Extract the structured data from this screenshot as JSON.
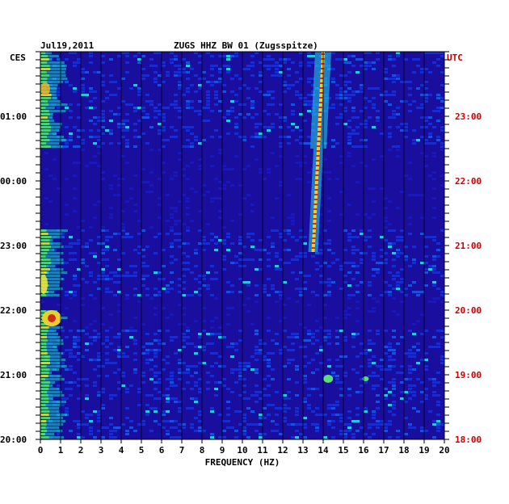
{
  "header": {
    "date": "Jul19,2011",
    "station": "ZUGS HHZ BW 01 (Zugsspitze)",
    "left_zone": "CES",
    "right_zone": "UTC"
  },
  "chart_data": {
    "type": "heatmap",
    "title": "ZUGS HHZ BW 01 (Zugsspitze)",
    "date": "Jul19,2011",
    "xlabel": "FREQUENCY (HZ)",
    "xlim": [
      0,
      20
    ],
    "x_ticks": [
      "0",
      "1",
      "2",
      "3",
      "4",
      "5",
      "6",
      "7",
      "8",
      "9",
      "10",
      "11",
      "12",
      "13",
      "14",
      "15",
      "16",
      "17",
      "18",
      "19",
      "20"
    ],
    "y_left_label": "CES",
    "y_right_label": "UTC",
    "y_left_ticks": [
      "01:00",
      "00:00",
      "23:00",
      "22:00",
      "21:00",
      "20:00"
    ],
    "y_right_ticks": [
      "23:00",
      "22:00",
      "21:00",
      "20:00",
      "19:00",
      "18:00"
    ],
    "colors": {
      "background": "#1a0e9e",
      "band": "#0a0aa0",
      "grid": "#000000",
      "right_axis": "#cc0000",
      "text": "#000000"
    }
  }
}
